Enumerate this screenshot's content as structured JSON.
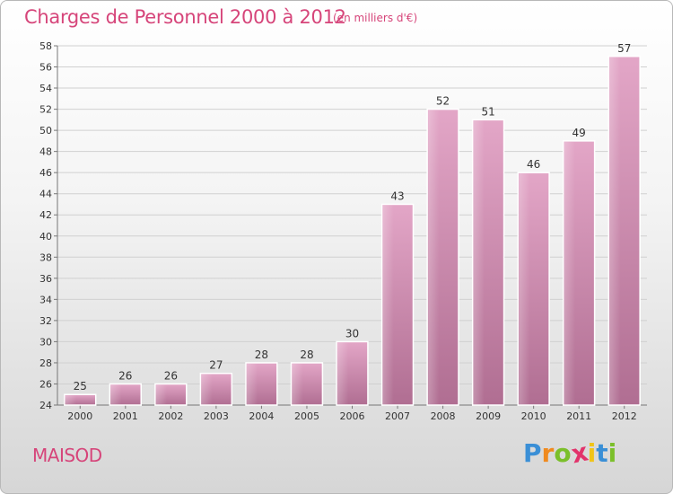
{
  "chart_data": {
    "type": "bar",
    "title": "Charges de Personnel 2000 à 2012",
    "subtitle": "(en milliers d'€)",
    "categories": [
      "2000",
      "2001",
      "2002",
      "2003",
      "2004",
      "2005",
      "2006",
      "2007",
      "2008",
      "2009",
      "2010",
      "2011",
      "2012"
    ],
    "values": [
      25,
      26,
      26,
      27,
      28,
      28,
      30,
      43,
      52,
      51,
      46,
      49,
      57
    ],
    "ylim": [
      24,
      58
    ],
    "yticks": [
      24,
      26,
      28,
      30,
      32,
      34,
      36,
      38,
      40,
      42,
      44,
      46,
      48,
      50,
      52,
      54,
      56,
      58
    ],
    "grid": true,
    "bar_color": "#c978a3"
  },
  "footer": {
    "commune": "MAISOD",
    "logo_letters": [
      "P",
      "r",
      "o",
      "x",
      "i",
      "t",
      "i"
    ],
    "logo_colors": [
      "#3a8fd6",
      "#f08a1e",
      "#7bbf2a",
      "#e2336b",
      "#f0c419",
      "#3a8fd6",
      "#7bbf2a"
    ]
  }
}
